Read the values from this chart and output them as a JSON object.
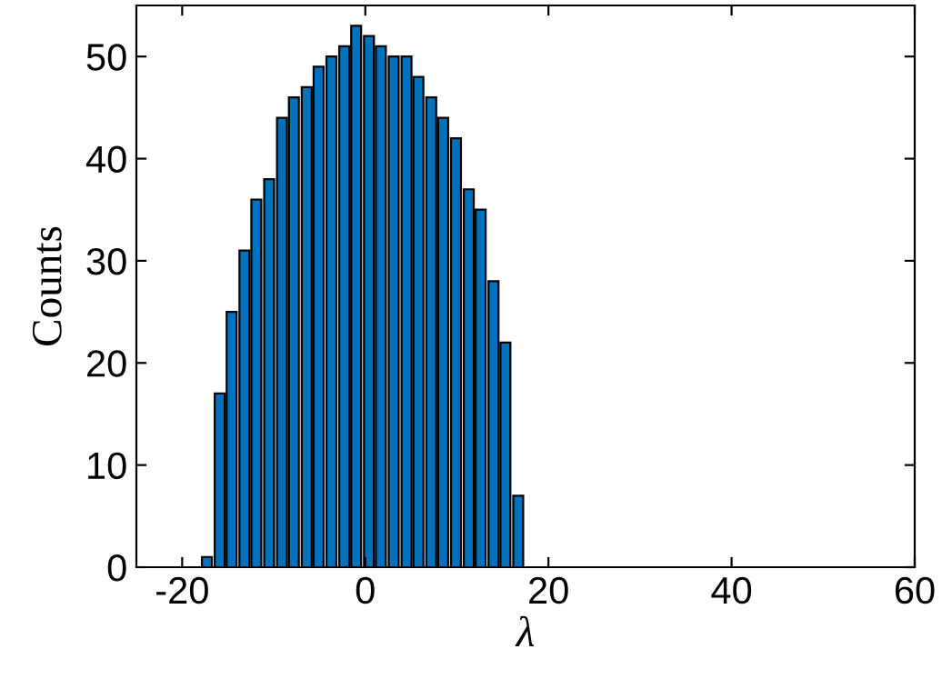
{
  "chart_data": {
    "type": "bar",
    "xlabel": "λ",
    "ylabel": "Counts",
    "x": [
      -17.3,
      -15.9,
      -14.6,
      -13.2,
      -11.9,
      -10.5,
      -9.1,
      -7.8,
      -6.4,
      -5.1,
      -3.7,
      -2.3,
      -1.0,
      0.4,
      1.7,
      3.1,
      4.5,
      5.8,
      7.2,
      8.5,
      9.9,
      11.3,
      12.6,
      14.0,
      15.3,
      16.7
    ],
    "values": [
      1,
      17,
      25,
      31,
      36,
      38,
      44,
      46,
      47,
      49,
      50,
      51,
      53,
      52,
      51,
      50,
      50,
      48,
      46,
      44,
      42,
      37,
      35,
      28,
      22,
      7
    ],
    "color": "#0072bd",
    "xlim": [
      -25,
      60
    ],
    "xticks": [
      -20,
      0,
      20,
      40,
      60
    ],
    "ylim": [
      0,
      55
    ],
    "yticks": [
      0,
      10,
      20,
      30,
      40,
      50
    ],
    "grid": false,
    "legend": false
  }
}
